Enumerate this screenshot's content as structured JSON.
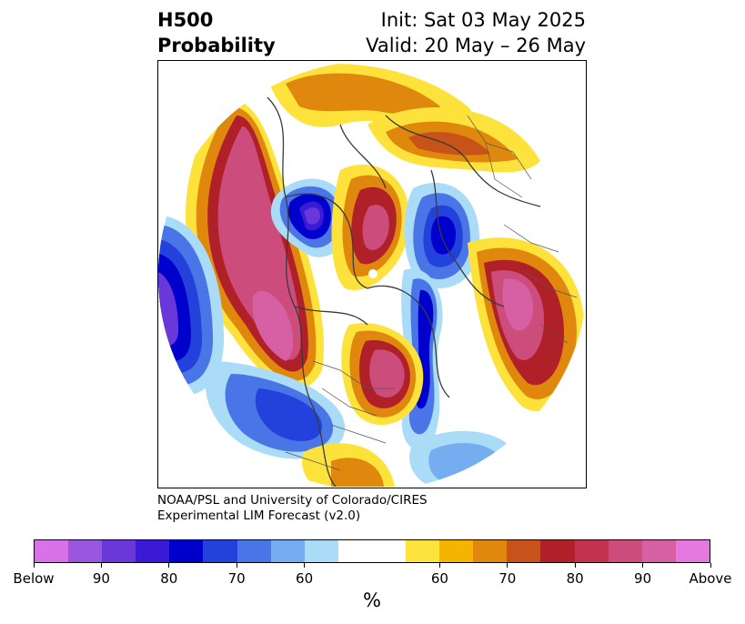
{
  "title": {
    "left_line1": "H500",
    "left_line2": "Probability",
    "right_line1": "Init: Sat 03 May 2025",
    "right_line2": "Valid: 20 May – 26 May"
  },
  "credit": {
    "line1": "NOAA/PSL and University of Colorado/CIRES",
    "line2": "Experimental LIM Forecast (v2.0)"
  },
  "colorbar": {
    "unit": "%",
    "colors": [
      "#d772e8",
      "#9b56e0",
      "#6a37d8",
      "#3a1ad5",
      "#0000cd",
      "#2342dc",
      "#4a75e6",
      "#74aef0",
      "#aadcf7",
      "#ffffff",
      "#fee23c",
      "#f4b400",
      "#e0870d",
      "#c8531a",
      "#b02028",
      "#c33350",
      "#cc4d7c",
      "#d75fa4",
      "#e579e0"
    ],
    "labels": [
      "Below",
      "90",
      "80",
      "70",
      "60",
      "60",
      "70",
      "80",
      "90",
      "Above"
    ]
  },
  "map": {
    "projection": "north-polar-stereographic",
    "legend_category_colors": {
      "below_strong": "#3a1ad5",
      "below_weak": "#aadcf7",
      "neutral": "#ffffff",
      "above_weak": "#fee23c",
      "above_strong": "#cc4d7c"
    }
  }
}
